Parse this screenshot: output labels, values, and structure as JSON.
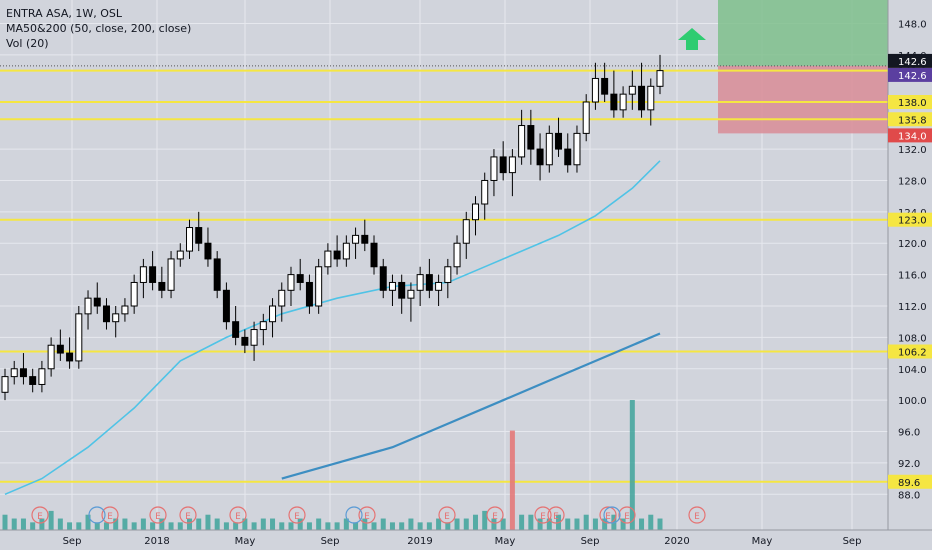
{
  "legend": {
    "symbol_line": "ENTRA ASA, 1W, OSL",
    "ma_line": "MA50&200 (50, close, 200, close)",
    "vol_line": "Vol (20)"
  },
  "colors": {
    "background": "#d1d4dc",
    "grid": "#e6e8ee",
    "candle_up": "#ffffff",
    "candle_down": "#000000",
    "ma50": "#4fc3e6",
    "ma200": "#3d8ec2",
    "level_line": "#f5e642",
    "vol_up": "#3fa39b",
    "vol_down": "#e57373",
    "target_zone": "#7fbf8c",
    "stop_zone": "#d98c96",
    "arrow": "#2ecc71",
    "earnings": "#e57373",
    "dividend": "#5b9bd5"
  },
  "chart_data": {
    "type": "candlestick",
    "ylim": [
      86,
      151
    ],
    "x_ticks": [
      "Sep",
      "2018",
      "May",
      "Sep",
      "2019",
      "May",
      "Sep",
      "2020",
      "May",
      "Sep"
    ],
    "y_ticks": [
      "148.0",
      "144.0",
      "132.0",
      "128.0",
      "124.0",
      "120.0",
      "116.0",
      "112.0",
      "108.0",
      "104.0",
      "100.0",
      "96.0",
      "92.0",
      "88.0"
    ],
    "y_tick_values": [
      148,
      144,
      132,
      128,
      124,
      120,
      116,
      112,
      108,
      104,
      100,
      96,
      92,
      88
    ],
    "price_levels": [
      {
        "label": "142.0",
        "value": 142.0
      },
      {
        "label": "138.0",
        "value": 138.0
      },
      {
        "label": "135.8",
        "value": 135.8
      },
      {
        "label": "123.0",
        "value": 123.0
      },
      {
        "label": "106.2",
        "value": 106.2
      },
      {
        "label": "89.6",
        "value": 89.6
      }
    ],
    "price_tags": [
      {
        "label": "142.6",
        "value": 142.6,
        "bg": "#131722",
        "fg": "#ffffff"
      },
      {
        "label": "142.6",
        "value": 142.6,
        "bg": "#5b3fa0",
        "fg": "#ffffff"
      },
      {
        "label": "134.0",
        "value": 134.0,
        "bg": "#e04a4a",
        "fg": "#ffffff"
      }
    ],
    "long_position": {
      "entry": 142.6,
      "target": 151,
      "stop": 134.0
    },
    "earnings_markers": 14,
    "dividend_markers": 3,
    "ohlc": [
      [
        101,
        104,
        100,
        103
      ],
      [
        103,
        105,
        102,
        104
      ],
      [
        104,
        106,
        102,
        103
      ],
      [
        103,
        104,
        101,
        102
      ],
      [
        102,
        105,
        101,
        104
      ],
      [
        104,
        108,
        103,
        107
      ],
      [
        107,
        109,
        105,
        106
      ],
      [
        106,
        108,
        104,
        105
      ],
      [
        105,
        112,
        104,
        111
      ],
      [
        111,
        114,
        109,
        113
      ],
      [
        113,
        115,
        111,
        112
      ],
      [
        112,
        113,
        109,
        110
      ],
      [
        110,
        112,
        108,
        111
      ],
      [
        111,
        113,
        110,
        112
      ],
      [
        112,
        116,
        111,
        115
      ],
      [
        115,
        118,
        113,
        117
      ],
      [
        117,
        119,
        114,
        115
      ],
      [
        115,
        117,
        113,
        114
      ],
      [
        114,
        119,
        113,
        118
      ],
      [
        118,
        120,
        117,
        119
      ],
      [
        119,
        123,
        118,
        122
      ],
      [
        122,
        124,
        119,
        120
      ],
      [
        120,
        122,
        117,
        118
      ],
      [
        118,
        119,
        113,
        114
      ],
      [
        114,
        115,
        109,
        110
      ],
      [
        110,
        112,
        107,
        108
      ],
      [
        108,
        109,
        106,
        107
      ],
      [
        107,
        110,
        105,
        109
      ],
      [
        109,
        111,
        107,
        110
      ],
      [
        110,
        113,
        108,
        112
      ],
      [
        112,
        115,
        110,
        114
      ],
      [
        114,
        117,
        112,
        116
      ],
      [
        116,
        118,
        114,
        115
      ],
      [
        115,
        116,
        111,
        112
      ],
      [
        112,
        118,
        111,
        117
      ],
      [
        117,
        120,
        116,
        119
      ],
      [
        119,
        121,
        117,
        118
      ],
      [
        118,
        121,
        117,
        120
      ],
      [
        120,
        122,
        118,
        121
      ],
      [
        121,
        123,
        119,
        120
      ],
      [
        120,
        121,
        116,
        117
      ],
      [
        117,
        118,
        113,
        114
      ],
      [
        114,
        116,
        112,
        115
      ],
      [
        115,
        116,
        111,
        113
      ],
      [
        113,
        115,
        110,
        114
      ],
      [
        114,
        117,
        112,
        116
      ],
      [
        116,
        118,
        113,
        114
      ],
      [
        114,
        116,
        112,
        115
      ],
      [
        115,
        118,
        113,
        117
      ],
      [
        117,
        121,
        116,
        120
      ],
      [
        120,
        124,
        118,
        123
      ],
      [
        123,
        126,
        121,
        125
      ],
      [
        125,
        129,
        123,
        128
      ],
      [
        128,
        132,
        126,
        131
      ],
      [
        131,
        133,
        128,
        129
      ],
      [
        129,
        132,
        126,
        131
      ],
      [
        131,
        137,
        130,
        135
      ],
      [
        135,
        137,
        130,
        132
      ],
      [
        132,
        134,
        128,
        130
      ],
      [
        130,
        135,
        129,
        134
      ],
      [
        134,
        136,
        131,
        132
      ],
      [
        132,
        134,
        129,
        130
      ],
      [
        130,
        135,
        129,
        134
      ],
      [
        134,
        139,
        133,
        138
      ],
      [
        138,
        143,
        137,
        141
      ],
      [
        141,
        143,
        138,
        139
      ],
      [
        139,
        142,
        136,
        137
      ],
      [
        137,
        140,
        136,
        139
      ],
      [
        139,
        142,
        137,
        140
      ],
      [
        140,
        143,
        136,
        137
      ],
      [
        137,
        141,
        135,
        140
      ],
      [
        140,
        144,
        139,
        142
      ]
    ],
    "ma50": [
      [
        0,
        null
      ]
    ],
    "ma50_points": [
      [
        0,
        88
      ],
      [
        4,
        90
      ],
      [
        9,
        94
      ],
      [
        14,
        99
      ],
      [
        19,
        105
      ],
      [
        24,
        108
      ],
      [
        30,
        111
      ],
      [
        36,
        113
      ],
      [
        42,
        114.5
      ],
      [
        48,
        115
      ],
      [
        52,
        117
      ],
      [
        56,
        119
      ],
      [
        60,
        121
      ],
      [
        64,
        123.5
      ],
      [
        68,
        127
      ],
      [
        71,
        130.5
      ]
    ],
    "ma200_points": [
      [
        30,
        90
      ],
      [
        36,
        92
      ],
      [
        42,
        94
      ],
      [
        48,
        97
      ],
      [
        54,
        100
      ],
      [
        60,
        103
      ],
      [
        66,
        106
      ],
      [
        71,
        108.5
      ]
    ],
    "volume": [
      4,
      3,
      3,
      2,
      3,
      5,
      3,
      2,
      2,
      4,
      2,
      2,
      3,
      3,
      2,
      3,
      2,
      3,
      2,
      2,
      3,
      3,
      4,
      3,
      2,
      2,
      3,
      2,
      3,
      3,
      2,
      2,
      3,
      2,
      3,
      2,
      2,
      3,
      2,
      3,
      2,
      3,
      2,
      2,
      3,
      2,
      2,
      3,
      2,
      3,
      3,
      4,
      5,
      3,
      3,
      26,
      4,
      4,
      3,
      3,
      4,
      3,
      3,
      4,
      3,
      3,
      4,
      3,
      34,
      3,
      4,
      3
    ],
    "volume_down_index": 55
  }
}
